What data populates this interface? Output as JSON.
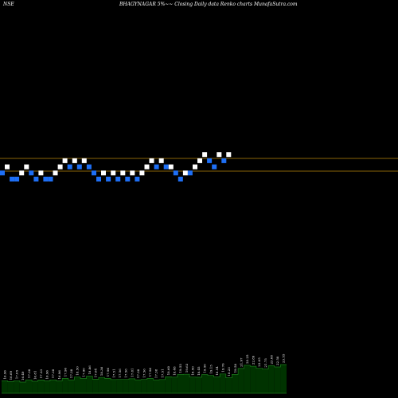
{
  "header": {
    "exchange": "NSE",
    "title": "BHAGYNAGAR 5%~~  Closing Daily data  Renko  charts MunafaSutra.com"
  },
  "colors": {
    "background": "#000000",
    "up_brick": "#ffffff",
    "down_brick": "#1e6ff5",
    "reference_line": "#b8860b",
    "volume_fill": "#003300",
    "volume_outline": "#1a7a1a",
    "label_text": "#ffffff"
  },
  "chart_data": {
    "type": "renko",
    "brick_size": "5%",
    "grid": false,
    "price_lines": [
      21.35,
      20.4
    ],
    "bricks": [
      {
        "dir": "down",
        "level": 1
      },
      {
        "dir": "up",
        "level": 2
      },
      {
        "dir": "down",
        "level": 0
      },
      {
        "dir": "down",
        "level": 0
      },
      {
        "dir": "up",
        "level": 1
      },
      {
        "dir": "up",
        "level": 2
      },
      {
        "dir": "down",
        "level": 1
      },
      {
        "dir": "down",
        "level": 0
      },
      {
        "dir": "up",
        "level": 1
      },
      {
        "dir": "down",
        "level": 0
      },
      {
        "dir": "down",
        "level": 0
      },
      {
        "dir": "up",
        "level": 1
      },
      {
        "dir": "up",
        "level": 2
      },
      {
        "dir": "up",
        "level": 3
      },
      {
        "dir": "down",
        "level": 2
      },
      {
        "dir": "up",
        "level": 3
      },
      {
        "dir": "down",
        "level": 2
      },
      {
        "dir": "up",
        "level": 3
      },
      {
        "dir": "down",
        "level": 2
      },
      {
        "dir": "down",
        "level": 1
      },
      {
        "dir": "down",
        "level": 0
      },
      {
        "dir": "up",
        "level": 1
      },
      {
        "dir": "down",
        "level": 0
      },
      {
        "dir": "up",
        "level": 1
      },
      {
        "dir": "down",
        "level": 0
      },
      {
        "dir": "up",
        "level": 1
      },
      {
        "dir": "down",
        "level": 0
      },
      {
        "dir": "up",
        "level": 1
      },
      {
        "dir": "down",
        "level": 0
      },
      {
        "dir": "up",
        "level": 1
      },
      {
        "dir": "up",
        "level": 2
      },
      {
        "dir": "up",
        "level": 3
      },
      {
        "dir": "down",
        "level": 2
      },
      {
        "dir": "up",
        "level": 3
      },
      {
        "dir": "down",
        "level": 2
      },
      {
        "dir": "up",
        "level": 2
      },
      {
        "dir": "down",
        "level": 1
      },
      {
        "dir": "down",
        "level": 0
      },
      {
        "dir": "up",
        "level": 1
      },
      {
        "dir": "down",
        "level": 1
      },
      {
        "dir": "up",
        "level": 2
      },
      {
        "dir": "up",
        "level": 3
      },
      {
        "dir": "up",
        "level": 4
      },
      {
        "dir": "down",
        "level": 3
      },
      {
        "dir": "down",
        "level": 2
      },
      {
        "dir": "up",
        "level": 4
      },
      {
        "dir": "down",
        "level": 3
      },
      {
        "dir": "up",
        "level": 4
      }
    ],
    "volume_labels": [
      "16.96",
      "16.69",
      "17.05",
      "16.49",
      "17.38",
      "16.81",
      "17.33",
      "16.96",
      "17.38",
      "16.96",
      "17.96",
      "17.38",
      "18.50",
      "17.90",
      "18.86",
      "17.64",
      "18.36",
      "17.96",
      "17.51",
      "17.56",
      "17.56",
      "17.81",
      "17.38",
      "17.56",
      "17.96",
      "17.38",
      "17.51",
      "18.60",
      "18.48",
      "19.55",
      "19.63",
      "18.50",
      "18.45",
      "19.50",
      "19.15",
      "18.54",
      "19.76",
      "18.23",
      "19.58",
      "21.97",
      "23.25",
      "22.89",
      "22.05",
      "21.75",
      "23.08",
      "22.58",
      "23.55"
    ]
  }
}
